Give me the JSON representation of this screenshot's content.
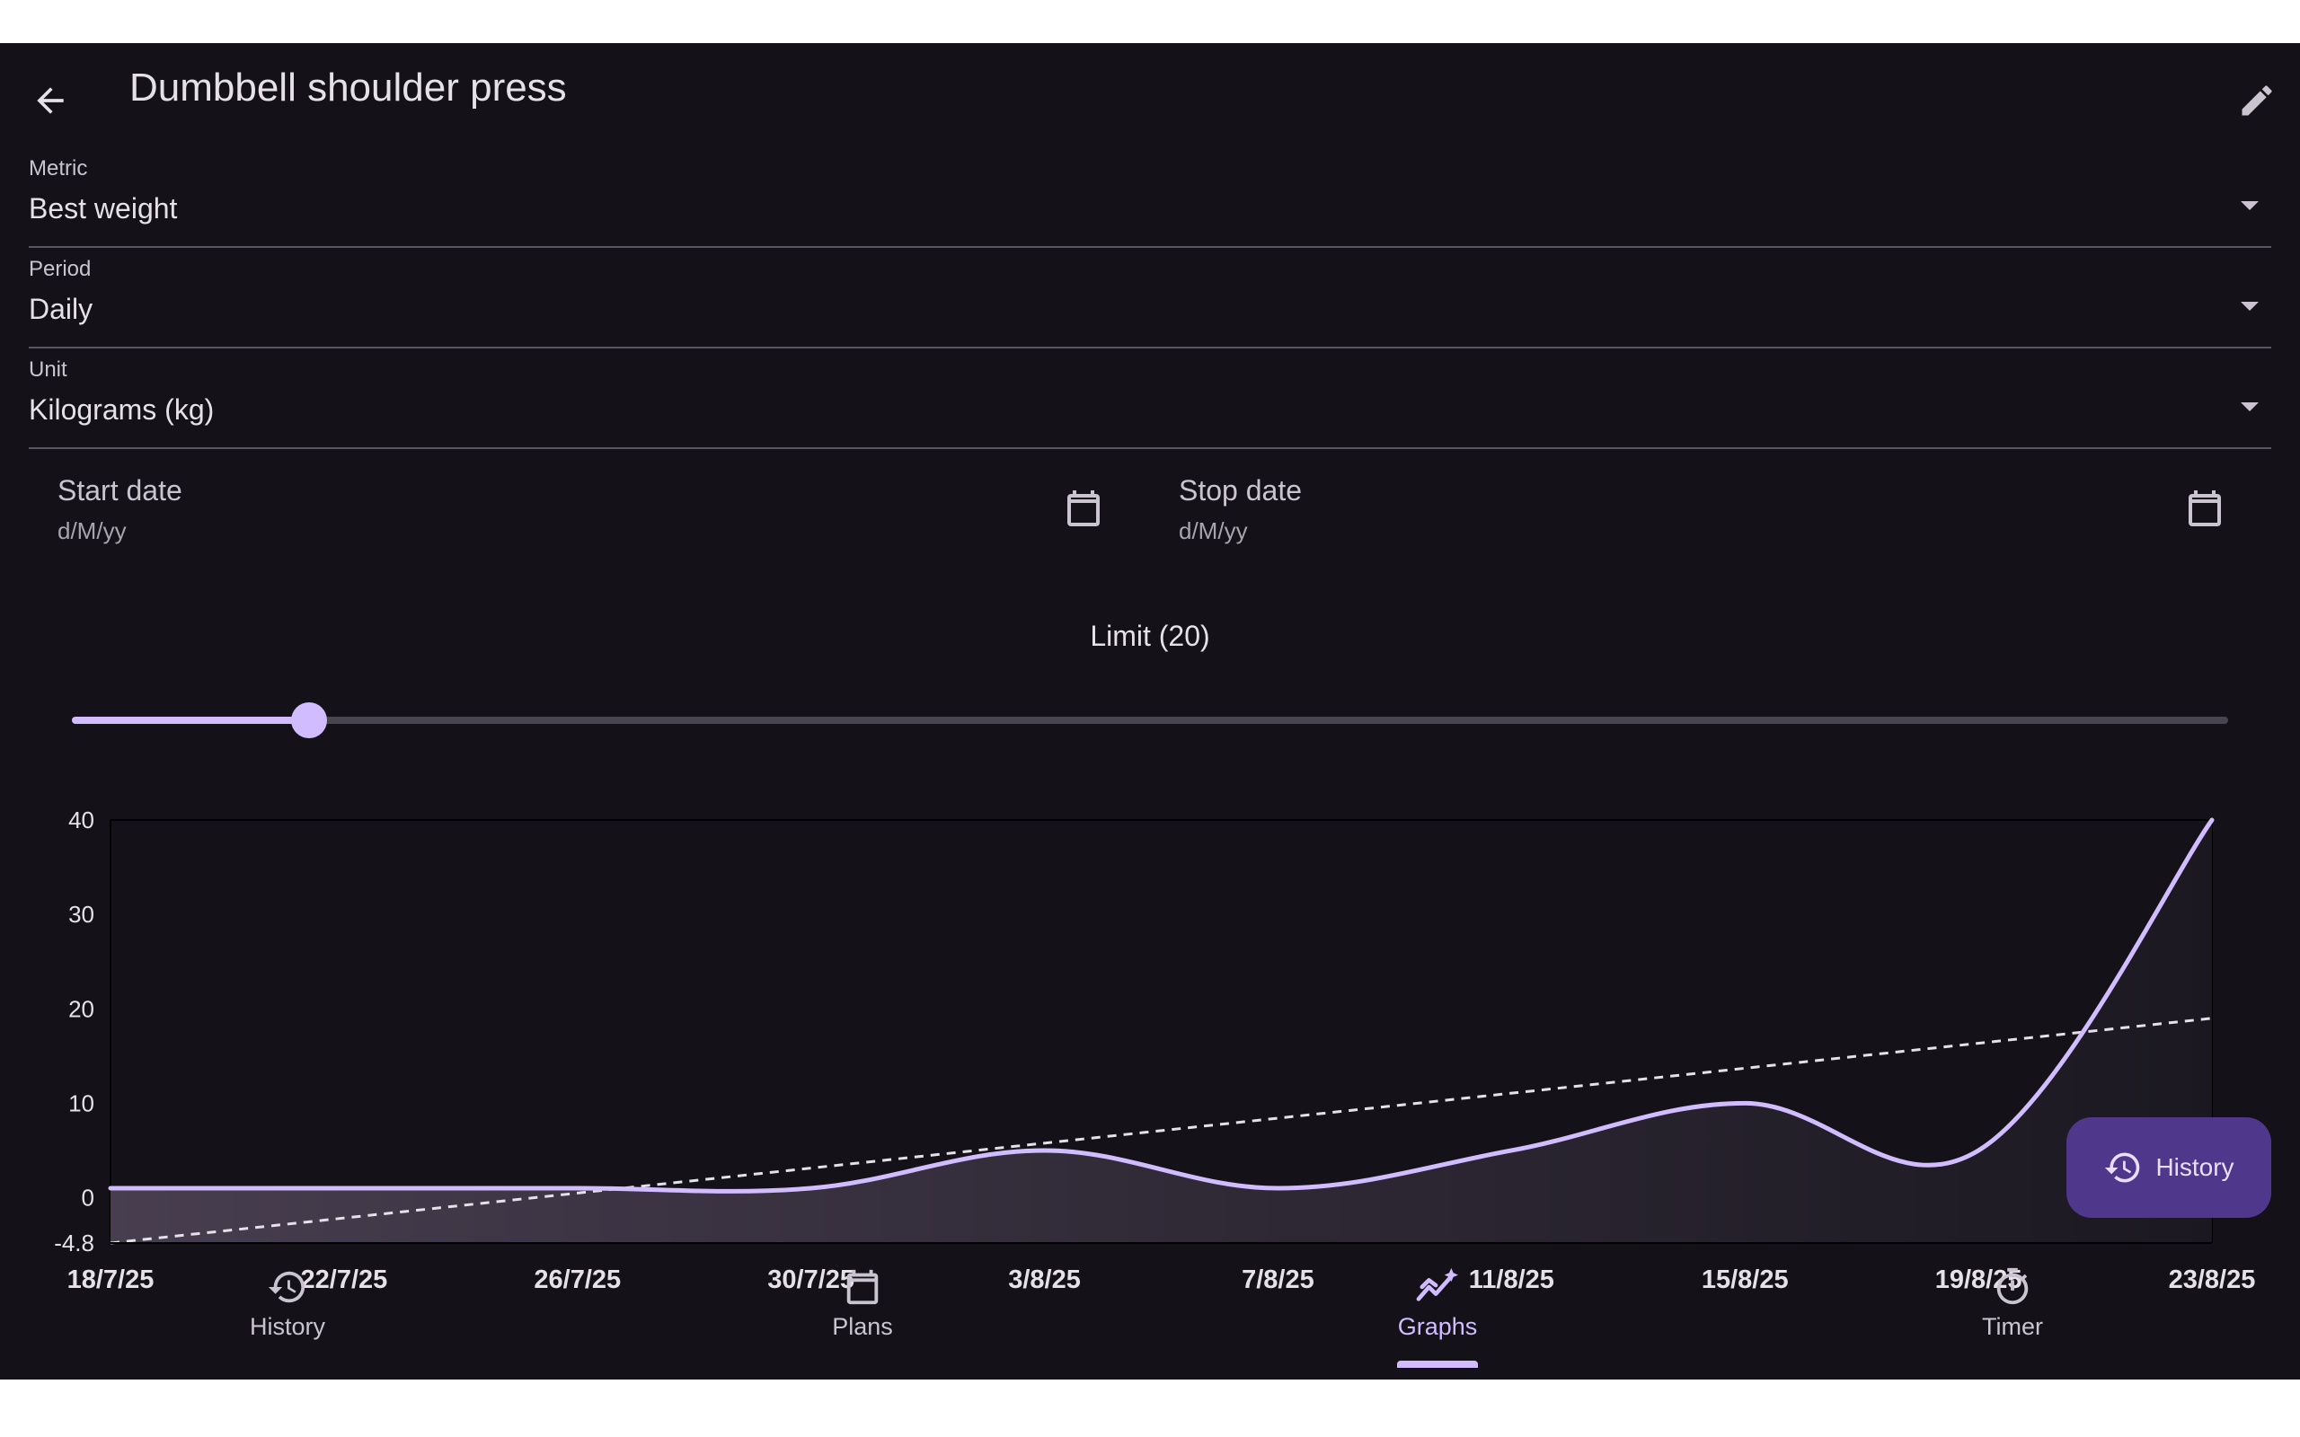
{
  "appbar": {
    "title": "Dumbbell shoulder press",
    "back_icon": "arrow-back-icon",
    "edit_icon": "pencil-edit-icon"
  },
  "filters": {
    "metric": {
      "label": "Metric",
      "value": "Best weight"
    },
    "period": {
      "label": "Period",
      "value": "Daily"
    },
    "unit": {
      "label": "Unit",
      "value": "Kilograms (kg)"
    }
  },
  "dates": {
    "start": {
      "label": "Start date",
      "placeholder": "d/M/yy"
    },
    "stop": {
      "label": "Stop date",
      "placeholder": "d/M/yy"
    }
  },
  "limit": {
    "label": "Limit (20)",
    "value": 20,
    "max": 200,
    "fraction": 0.11
  },
  "fab": {
    "label": "History",
    "icon": "history-icon"
  },
  "nav": {
    "items": [
      {
        "label": "History",
        "icon": "history-icon"
      },
      {
        "label": "Plans",
        "icon": "calendar-icon"
      },
      {
        "label": "Graphs",
        "icon": "graph-sparkle-icon",
        "active": true
      },
      {
        "label": "Timer",
        "icon": "timer-icon"
      }
    ]
  },
  "colors": {
    "background": "#141218",
    "accent": "#d0bcff",
    "track": "#49454f",
    "fab": "#4f378b"
  },
  "chart_data": {
    "type": "line",
    "x_dates": [
      "18/7/25",
      "22/7/25",
      "26/7/25",
      "30/7/25",
      "3/8/25",
      "7/8/25",
      "11/8/25",
      "15/8/25",
      "19/8/25",
      "23/8/25"
    ],
    "x_ticks": [
      "18/7/25",
      "22/7/25",
      "26/7/25",
      "30/7/25",
      "3/8/25",
      "7/8/25",
      "11/8/25",
      "15/8/25",
      "19/8/25",
      "23/8/25"
    ],
    "y_ticks": [
      "40",
      "30",
      "20",
      "10",
      "0",
      "-4.8"
    ],
    "ylim": [
      -4.8,
      40
    ],
    "series": [
      {
        "values": [
          1,
          1,
          1,
          1,
          5,
          1,
          5,
          10,
          5,
          40
        ]
      }
    ],
    "trendline": {
      "start": -4.8,
      "end": 19
    },
    "grid": false,
    "area_fill": true
  }
}
